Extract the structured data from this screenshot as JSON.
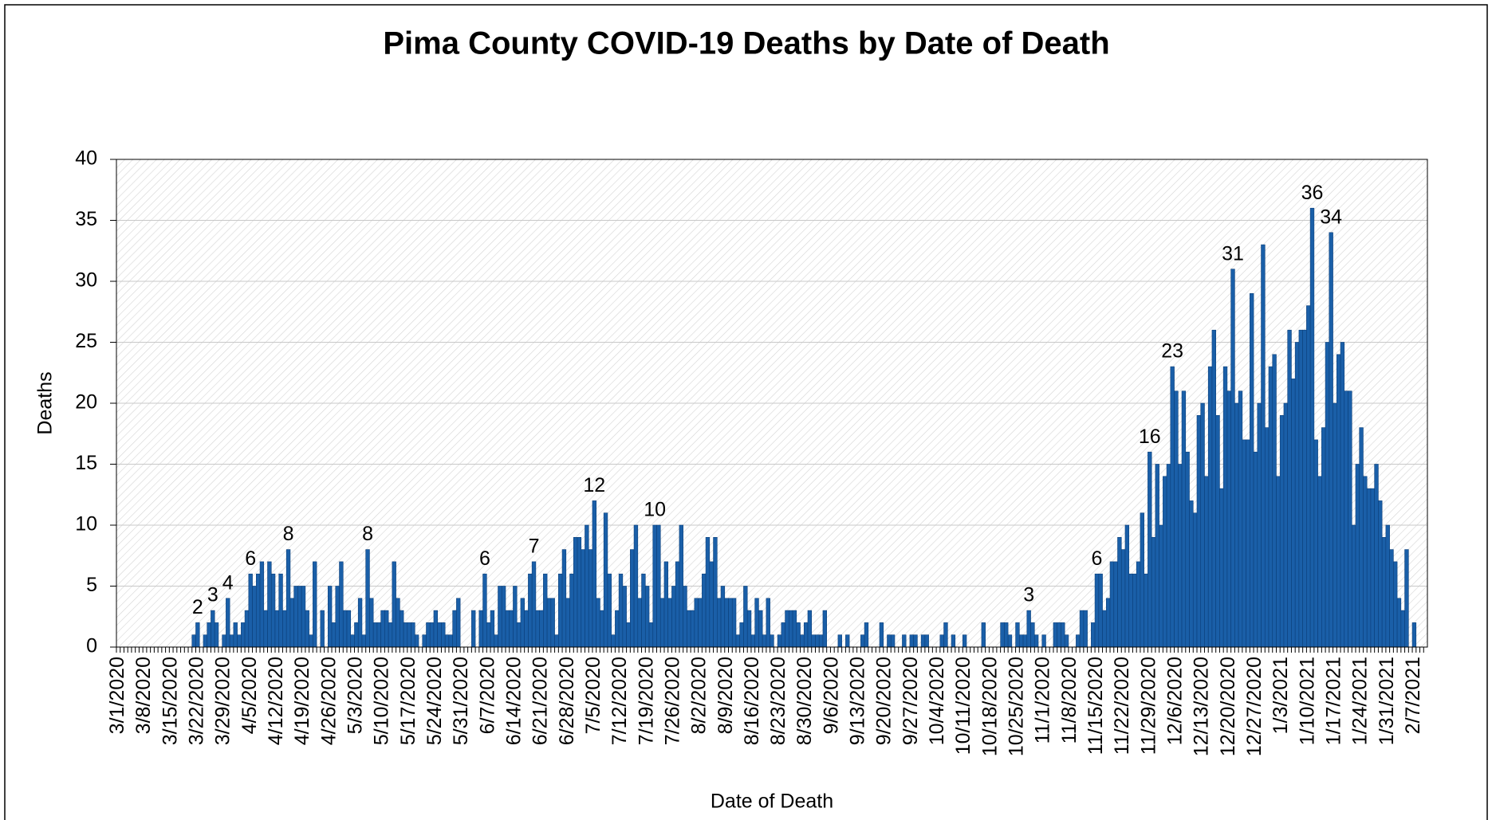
{
  "chart_data": {
    "type": "bar",
    "title": "Pima County COVID-19 Deaths by Date of Death",
    "x_label": "Date of Death",
    "y_label": "Deaths",
    "color": "#1a5fa8",
    "grid": true,
    "ylim": [
      0,
      40
    ],
    "yticks": [
      0,
      5,
      10,
      15,
      20,
      25,
      30,
      35,
      40
    ],
    "categories": [
      "3/1/2020",
      null,
      null,
      null,
      null,
      null,
      null,
      "3/8/2020",
      null,
      null,
      null,
      null,
      null,
      null,
      "3/15/2020",
      null,
      null,
      null,
      null,
      null,
      null,
      "3/22/2020",
      null,
      null,
      null,
      null,
      null,
      null,
      "3/29/2020",
      null,
      null,
      null,
      null,
      null,
      null,
      "4/5/2020",
      null,
      null,
      null,
      null,
      null,
      null,
      "4/12/2020",
      null,
      null,
      null,
      null,
      null,
      null,
      "4/19/2020",
      null,
      null,
      null,
      null,
      null,
      null,
      "4/26/2020",
      null,
      null,
      null,
      null,
      null,
      null,
      "5/3/2020",
      null,
      null,
      null,
      null,
      null,
      null,
      "5/10/2020",
      null,
      null,
      null,
      null,
      null,
      null,
      "5/17/2020",
      null,
      null,
      null,
      null,
      null,
      null,
      "5/24/2020",
      null,
      null,
      null,
      null,
      null,
      null,
      "5/31/2020",
      null,
      null,
      null,
      null,
      null,
      null,
      "6/7/2020",
      null,
      null,
      null,
      null,
      null,
      null,
      "6/14/2020",
      null,
      null,
      null,
      null,
      null,
      null,
      "6/21/2020",
      null,
      null,
      null,
      null,
      null,
      null,
      "6/28/2020",
      null,
      null,
      null,
      null,
      null,
      null,
      "7/5/2020",
      null,
      null,
      null,
      null,
      null,
      null,
      "7/12/2020",
      null,
      null,
      null,
      null,
      null,
      null,
      "7/19/2020",
      null,
      null,
      null,
      null,
      null,
      null,
      "7/26/2020",
      null,
      null,
      null,
      null,
      null,
      null,
      "8/2/2020",
      null,
      null,
      null,
      null,
      null,
      null,
      "8/9/2020",
      null,
      null,
      null,
      null,
      null,
      null,
      "8/16/2020",
      null,
      null,
      null,
      null,
      null,
      null,
      "8/23/2020",
      null,
      null,
      null,
      null,
      null,
      null,
      "8/30/2020",
      null,
      null,
      null,
      null,
      null,
      null,
      "9/6/2020",
      null,
      null,
      null,
      null,
      null,
      null,
      "9/13/2020",
      null,
      null,
      null,
      null,
      null,
      null,
      "9/20/2020",
      null,
      null,
      null,
      null,
      null,
      null,
      "9/27/2020",
      null,
      null,
      null,
      null,
      null,
      null,
      "10/4/2020",
      null,
      null,
      null,
      null,
      null,
      null,
      "10/11/2020",
      null,
      null,
      null,
      null,
      null,
      null,
      "10/18/2020",
      null,
      null,
      null,
      null,
      null,
      null,
      "10/25/2020",
      null,
      null,
      null,
      null,
      null,
      null,
      "11/1/2020",
      null,
      null,
      null,
      null,
      null,
      null,
      "11/8/2020",
      null,
      null,
      null,
      null,
      null,
      null,
      "11/15/2020",
      null,
      null,
      null,
      null,
      null,
      null,
      "11/22/2020",
      null,
      null,
      null,
      null,
      null,
      null,
      "11/29/2020",
      null,
      null,
      null,
      null,
      null,
      null,
      "12/6/2020",
      null,
      null,
      null,
      null,
      null,
      null,
      "12/13/2020",
      null,
      null,
      null,
      null,
      null,
      null,
      "12/20/2020",
      null,
      null,
      null,
      null,
      null,
      null,
      "12/27/2020",
      null,
      null,
      null,
      null,
      null,
      null,
      "1/3/2021",
      null,
      null,
      null,
      null,
      null,
      null,
      "1/10/2021",
      null,
      null,
      null,
      null,
      null,
      null,
      "1/17/2021",
      null,
      null,
      null,
      null,
      null,
      null,
      "1/24/2021",
      null,
      null,
      null,
      null,
      null,
      null,
      "1/31/2021",
      null,
      null,
      null,
      null,
      null,
      null,
      "2/7/2021",
      null,
      null,
      null
    ],
    "values": [
      0,
      0,
      0,
      0,
      0,
      0,
      0,
      0,
      0,
      0,
      0,
      0,
      0,
      0,
      0,
      0,
      0,
      0,
      0,
      0,
      1,
      2,
      0,
      1,
      2,
      3,
      2,
      0,
      1,
      4,
      1,
      2,
      1,
      2,
      3,
      6,
      5,
      6,
      7,
      3,
      7,
      6,
      3,
      6,
      3,
      8,
      4,
      5,
      5,
      5,
      3,
      1,
      7,
      0,
      3,
      0,
      5,
      2,
      5,
      7,
      3,
      3,
      1,
      2,
      4,
      1,
      8,
      4,
      2,
      2,
      3,
      3,
      2,
      7,
      4,
      3,
      2,
      2,
      2,
      1,
      0,
      1,
      2,
      2,
      3,
      2,
      2,
      1,
      1,
      3,
      4,
      0,
      0,
      0,
      3,
      0,
      3,
      6,
      2,
      3,
      1,
      5,
      5,
      3,
      3,
      5,
      2,
      4,
      3,
      6,
      7,
      3,
      3,
      6,
      4,
      4,
      1,
      6,
      8,
      4,
      6,
      9,
      9,
      8,
      10,
      8,
      12,
      4,
      3,
      11,
      6,
      1,
      3,
      6,
      5,
      2,
      8,
      10,
      4,
      6,
      5,
      2,
      10,
      10,
      4,
      7,
      4,
      5,
      7,
      10,
      5,
      3,
      3,
      4,
      4,
      6,
      9,
      7,
      9,
      4,
      5,
      4,
      4,
      4,
      1,
      2,
      5,
      3,
      1,
      4,
      3,
      1,
      4,
      1,
      0,
      1,
      2,
      3,
      3,
      3,
      2,
      1,
      2,
      3,
      1,
      1,
      1,
      3,
      0,
      0,
      0,
      1,
      0,
      1,
      0,
      0,
      0,
      1,
      2,
      0,
      0,
      0,
      2,
      0,
      1,
      1,
      0,
      0,
      1,
      0,
      1,
      1,
      0,
      1,
      1,
      0,
      0,
      0,
      1,
      2,
      0,
      1,
      0,
      0,
      1,
      0,
      0,
      0,
      0,
      2,
      0,
      0,
      0,
      0,
      2,
      2,
      1,
      0,
      2,
      1,
      1,
      3,
      2,
      1,
      0,
      1,
      0,
      0,
      2,
      2,
      2,
      1,
      0,
      0,
      1,
      3,
      3,
      0,
      2,
      6,
      6,
      3,
      4,
      7,
      7,
      9,
      8,
      10,
      6,
      6,
      7,
      11,
      6,
      16,
      9,
      15,
      10,
      14,
      15,
      23,
      21,
      15,
      21,
      16,
      12,
      11,
      19,
      20,
      14,
      23,
      26,
      19,
      13,
      23,
      21,
      31,
      20,
      21,
      17,
      17,
      29,
      16,
      20,
      33,
      18,
      23,
      24,
      14,
      19,
      20,
      26,
      22,
      25,
      26,
      26,
      28,
      36,
      17,
      14,
      18,
      25,
      34,
      20,
      24,
      25,
      21,
      21,
      10,
      15,
      18,
      14,
      13,
      13,
      15,
      12,
      9,
      10,
      8,
      7,
      4,
      3,
      8,
      0,
      2,
      0,
      0,
      0
    ],
    "value_labels": [
      null,
      null,
      null,
      null,
      null,
      null,
      null,
      null,
      null,
      null,
      null,
      null,
      null,
      null,
      null,
      null,
      null,
      null,
      null,
      null,
      null,
      "2",
      null,
      null,
      null,
      "3",
      null,
      null,
      null,
      "4",
      null,
      null,
      null,
      null,
      null,
      "6",
      null,
      null,
      null,
      null,
      null,
      null,
      null,
      null,
      null,
      "8",
      null,
      null,
      null,
      null,
      null,
      null,
      null,
      null,
      null,
      null,
      null,
      null,
      null,
      null,
      null,
      null,
      null,
      null,
      null,
      null,
      "8",
      null,
      null,
      null,
      null,
      null,
      null,
      null,
      null,
      null,
      null,
      null,
      null,
      null,
      null,
      null,
      null,
      null,
      null,
      null,
      null,
      null,
      null,
      null,
      null,
      null,
      null,
      null,
      null,
      null,
      null,
      "6",
      null,
      null,
      null,
      null,
      null,
      null,
      null,
      null,
      null,
      null,
      null,
      null,
      "7",
      null,
      null,
      null,
      null,
      null,
      null,
      null,
      null,
      null,
      null,
      null,
      null,
      null,
      null,
      null,
      "12",
      null,
      null,
      null,
      null,
      null,
      null,
      null,
      null,
      null,
      null,
      null,
      null,
      null,
      null,
      null,
      "10",
      null,
      null,
      null,
      null,
      null,
      null,
      null,
      null,
      null,
      null,
      null,
      null,
      null,
      null,
      null,
      null,
      null,
      null,
      null,
      null,
      null,
      null,
      null,
      null,
      null,
      null,
      null,
      null,
      null,
      null,
      null,
      null,
      null,
      null,
      null,
      null,
      null,
      null,
      null,
      null,
      null,
      null,
      null,
      null,
      null,
      null,
      null,
      null,
      null,
      null,
      null,
      null,
      null,
      null,
      null,
      null,
      null,
      null,
      null,
      null,
      null,
      null,
      null,
      null,
      null,
      null,
      null,
      null,
      null,
      null,
      null,
      null,
      null,
      null,
      null,
      null,
      null,
      null,
      null,
      null,
      null,
      null,
      null,
      null,
      null,
      null,
      null,
      null,
      null,
      null,
      null,
      null,
      null,
      null,
      null,
      null,
      null,
      null,
      "3",
      null,
      null,
      null,
      null,
      null,
      null,
      null,
      null,
      null,
      null,
      null,
      null,
      null,
      null,
      null,
      null,
      null,
      "6",
      null,
      null,
      null,
      null,
      null,
      null,
      null,
      null,
      null,
      null,
      null,
      null,
      null,
      "16",
      null,
      null,
      null,
      null,
      null,
      "23",
      null,
      null,
      null,
      null,
      null,
      null,
      null,
      null,
      null,
      null,
      null,
      null,
      null,
      null,
      null,
      "31",
      null,
      null,
      null,
      null,
      null,
      null,
      null,
      null,
      null,
      null,
      null,
      null,
      null,
      null,
      null,
      null,
      null,
      null,
      null,
      null,
      "36",
      null,
      null,
      null,
      null,
      "34",
      null,
      null,
      null,
      null,
      null,
      null,
      null,
      null,
      null,
      null,
      null,
      null,
      null,
      null,
      null,
      null,
      null,
      null,
      null,
      null,
      null,
      null,
      null,
      null,
      null
    ]
  }
}
